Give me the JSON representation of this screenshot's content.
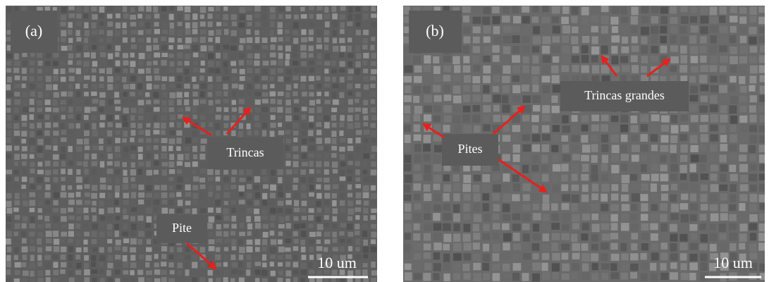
{
  "panels": [
    {
      "label": "(a)",
      "annotations": [
        "Trincas",
        "Pite"
      ],
      "scale": "10 um"
    },
    {
      "label": "(b)",
      "annotations": [
        "Trincas grandes",
        "Pites"
      ],
      "scale": "10 um"
    }
  ]
}
